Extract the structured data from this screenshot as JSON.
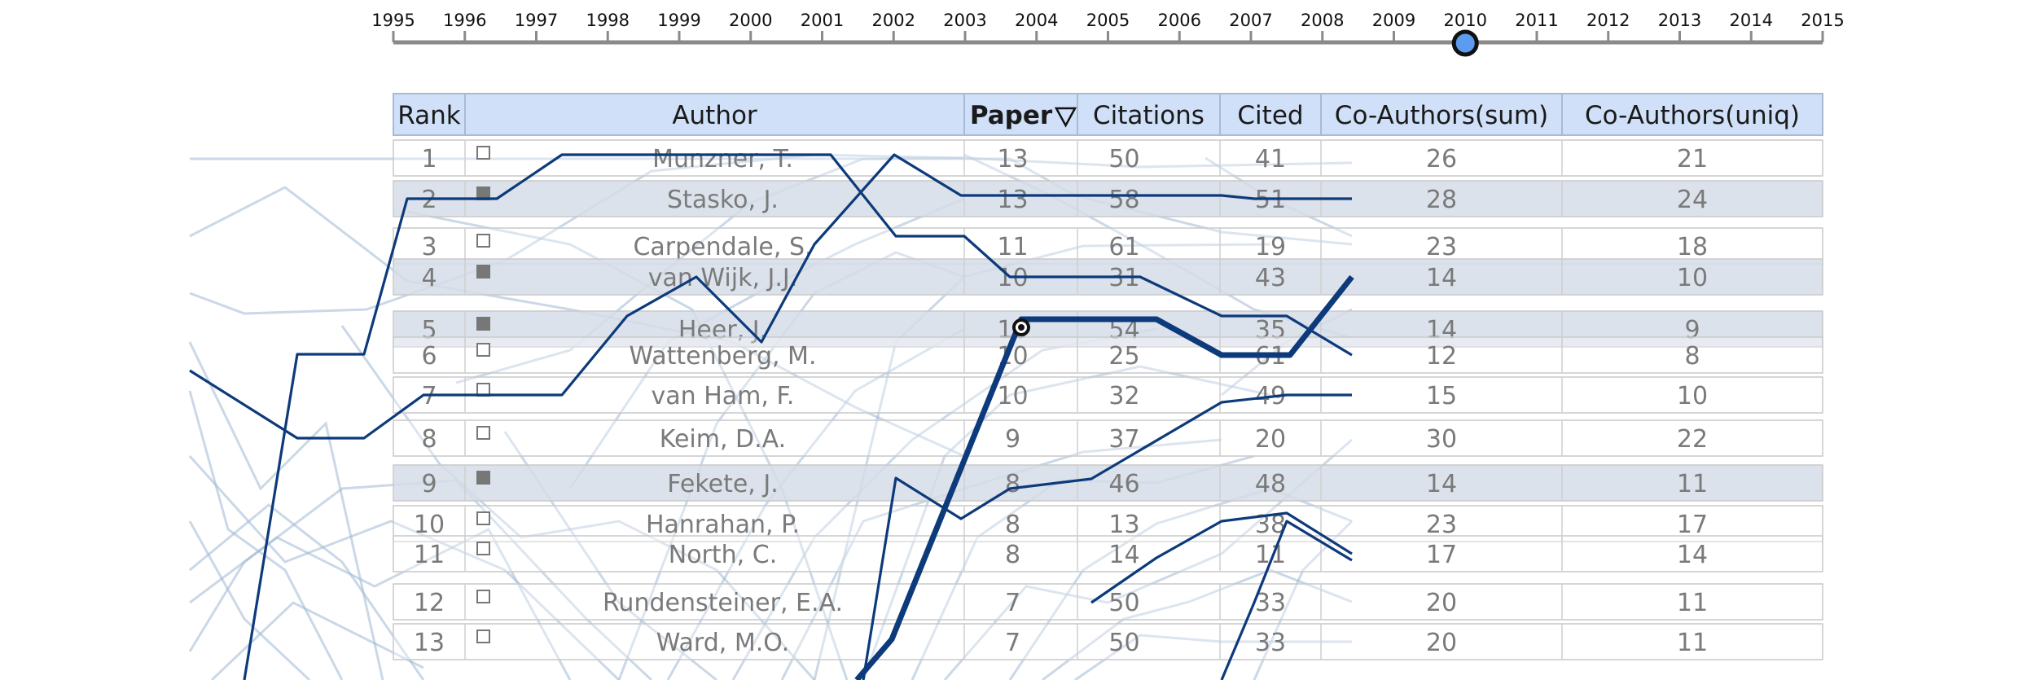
{
  "timeline": {
    "years": [
      "1995",
      "1996",
      "1997",
      "1998",
      "1999",
      "2000",
      "2001",
      "2002",
      "2003",
      "2004",
      "2005",
      "2006",
      "2007",
      "2008",
      "2009",
      "2010",
      "2011",
      "2012",
      "2013",
      "2014",
      "2015"
    ],
    "selected_year": "2010"
  },
  "table": {
    "columns": [
      "Rank",
      "Author",
      "Paper",
      "Citations",
      "Cited",
      "Co-Authors(sum)",
      "Co-Authors(uniq)"
    ],
    "sorted_column": "Paper",
    "sort_icon": "sort-descending-icon",
    "rows": [
      {
        "rank": "1",
        "author": "Munzner, T.",
        "paper": "13",
        "citations": "50",
        "cited": "41",
        "co_sum": "26",
        "co_uniq": "21",
        "selected": false
      },
      {
        "rank": "2",
        "author": "Stasko, J.",
        "paper": "13",
        "citations": "58",
        "cited": "51",
        "co_sum": "28",
        "co_uniq": "24",
        "selected": true
      },
      {
        "rank": "3",
        "author": "Carpendale, S.",
        "paper": "11",
        "citations": "61",
        "cited": "19",
        "co_sum": "23",
        "co_uniq": "18",
        "selected": false
      },
      {
        "rank": "4",
        "author": "van Wijk, J.J.",
        "paper": "10",
        "citations": "31",
        "cited": "43",
        "co_sum": "14",
        "co_uniq": "10",
        "selected": true
      },
      {
        "rank": "5",
        "author": "Heer, J.",
        "paper": "10",
        "citations": "54",
        "cited": "35",
        "co_sum": "14",
        "co_uniq": "9",
        "selected": true
      },
      {
        "rank": "6",
        "author": "Wattenberg, M.",
        "paper": "10",
        "citations": "25",
        "cited": "61",
        "co_sum": "12",
        "co_uniq": "8",
        "selected": false
      },
      {
        "rank": "7",
        "author": "van Ham, F.",
        "paper": "10",
        "citations": "32",
        "cited": "49",
        "co_sum": "15",
        "co_uniq": "10",
        "selected": false
      },
      {
        "rank": "8",
        "author": "Keim, D.A.",
        "paper": "9",
        "citations": "37",
        "cited": "20",
        "co_sum": "30",
        "co_uniq": "22",
        "selected": false
      },
      {
        "rank": "9",
        "author": "Fekete, J.",
        "paper": "8",
        "citations": "46",
        "cited": "48",
        "co_sum": "14",
        "co_uniq": "11",
        "selected": true
      },
      {
        "rank": "10",
        "author": "Hanrahan, P.",
        "paper": "8",
        "citations": "13",
        "cited": "38",
        "co_sum": "23",
        "co_uniq": "17",
        "selected": false
      },
      {
        "rank": "11",
        "author": "North, C.",
        "paper": "8",
        "citations": "14",
        "cited": "11",
        "co_sum": "17",
        "co_uniq": "14",
        "selected": false
      },
      {
        "rank": "12",
        "author": "Rundensteiner, E.A.",
        "paper": "7",
        "citations": "50",
        "cited": "33",
        "co_sum": "20",
        "co_uniq": "11",
        "selected": false
      },
      {
        "rank": "13",
        "author": "Ward, M.O.",
        "paper": "7",
        "citations": "50",
        "cited": "33",
        "co_sum": "20",
        "co_uniq": "11",
        "selected": false
      }
    ]
  },
  "colors": {
    "header_bg": "#cfe0f8",
    "selected_row_bg": "#d6dde7",
    "highlight_line": "#0d3a7a",
    "faded_line": "#9fb8d3",
    "slider_knob": "#5b9cf0"
  }
}
